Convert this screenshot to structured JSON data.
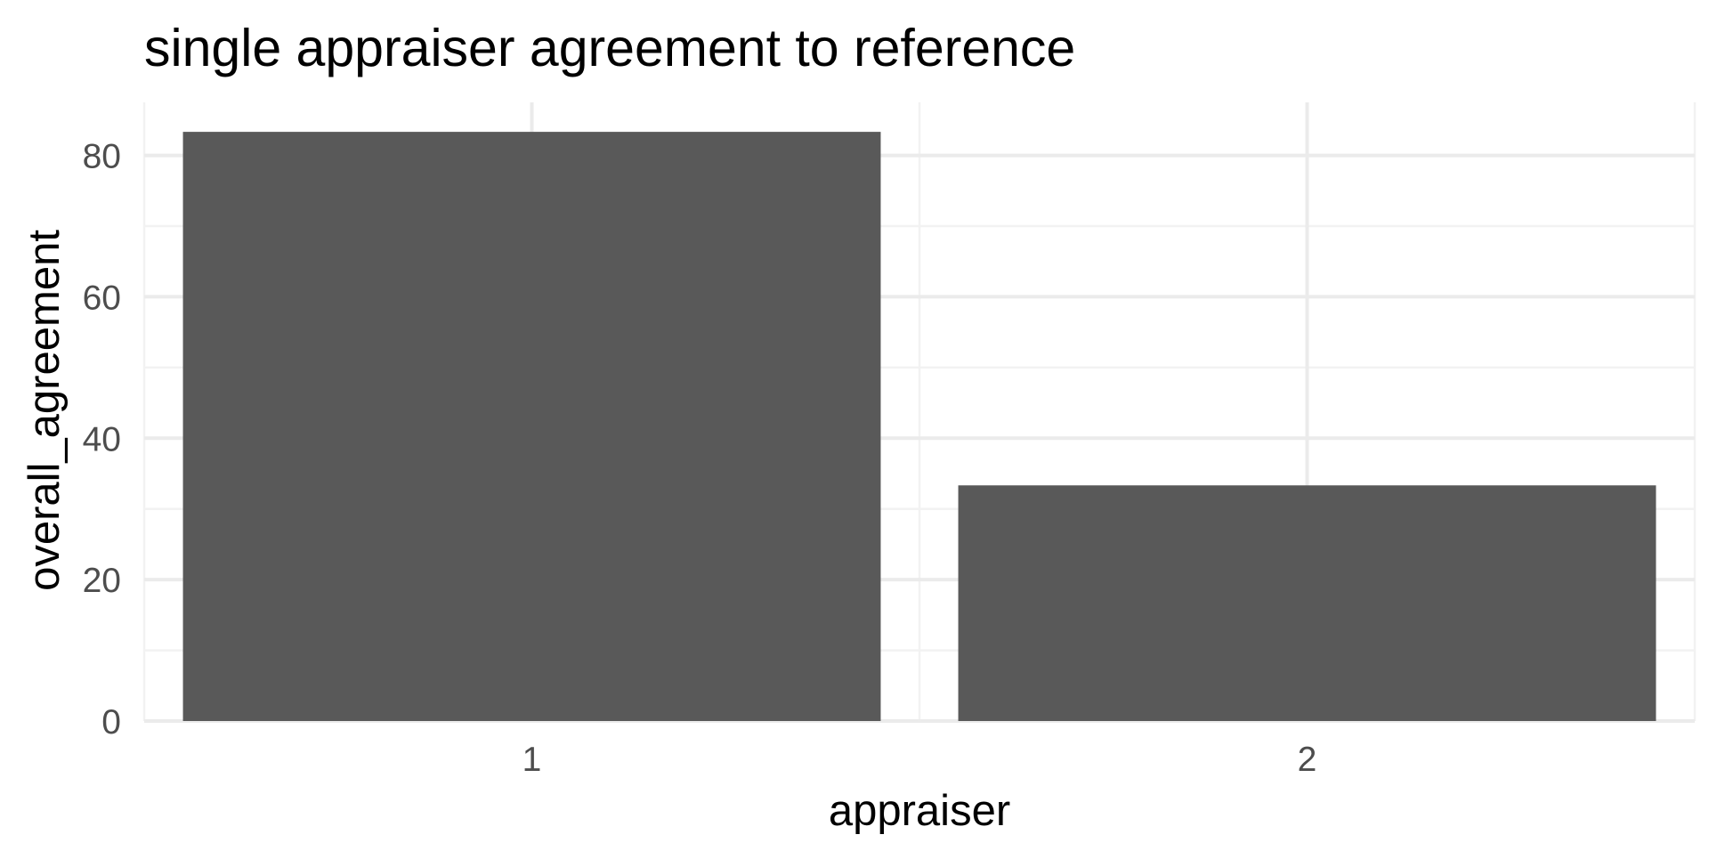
{
  "chart_data": {
    "type": "bar",
    "title": "single appraiser agreement to reference",
    "xlabel": "appraiser",
    "ylabel": "overall_agreement",
    "categories": [
      "1",
      "2"
    ],
    "values": [
      83.33,
      33.33
    ],
    "ylim": [
      0,
      87.5
    ],
    "y_ticks": [
      0,
      20,
      40,
      60,
      80
    ],
    "y_tick_labels": [
      "0",
      "20",
      "40",
      "60",
      "80"
    ],
    "grid": true,
    "legend": "none",
    "colors": {
      "bar": "#595959",
      "grid_major": "#ebebeb",
      "grid_minor": "#f2f2f2",
      "tick_text": "#4d4d4d",
      "text": "#000000",
      "background": "#ffffff"
    }
  }
}
